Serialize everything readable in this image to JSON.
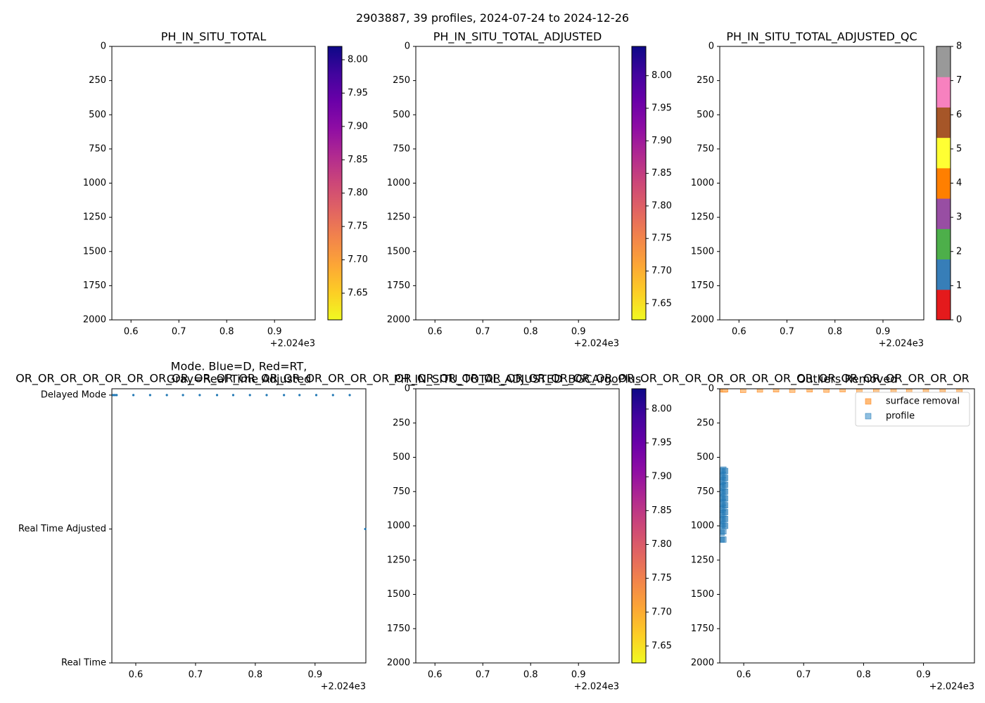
{
  "figure": {
    "suptitle": "2903887, 39 profiles, 2024-07-24 to 2024-12-26",
    "x_offset_label": "+2.024e3"
  },
  "chart_data": [
    {
      "id": "p1",
      "type": "heatmap",
      "title": "PH_IN_SITU_TOTAL",
      "x_ticks": [
        0.6,
        0.7,
        0.8,
        0.9
      ],
      "xlim": [
        0.56,
        0.985
      ],
      "ylim": [
        2000,
        0
      ],
      "y_ticks": [
        0,
        250,
        500,
        750,
        1000,
        1250,
        1500,
        1750,
        2000
      ],
      "values": [],
      "colorbar": {
        "type": "plasma_r",
        "range": [
          7.61,
          8.02
        ],
        "ticks": [
          "7.65",
          "7.70",
          "7.75",
          "7.80",
          "7.85",
          "7.90",
          "7.95",
          "8.00"
        ]
      }
    },
    {
      "id": "p2",
      "type": "heatmap",
      "title": "PH_IN_SITU_TOTAL_ADJUSTED",
      "x_ticks": [
        0.6,
        0.7,
        0.8,
        0.9
      ],
      "xlim": [
        0.56,
        0.985
      ],
      "ylim": [
        2000,
        0
      ],
      "y_ticks": [
        0,
        250,
        500,
        750,
        1000,
        1250,
        1500,
        1750,
        2000
      ],
      "values": [],
      "colorbar": {
        "type": "plasma_r",
        "range": [
          7.625,
          8.045
        ],
        "ticks": [
          "7.65",
          "7.70",
          "7.75",
          "7.80",
          "7.85",
          "7.90",
          "7.95",
          "8.00"
        ]
      }
    },
    {
      "id": "p3",
      "type": "heatmap",
      "title": "PH_IN_SITU_TOTAL_ADJUSTED_QC",
      "x_ticks": [
        0.6,
        0.7,
        0.8,
        0.9
      ],
      "xlim": [
        0.56,
        0.985
      ],
      "ylim": [
        2000,
        0
      ],
      "y_ticks": [
        0,
        250,
        500,
        750,
        1000,
        1250,
        1500,
        1750,
        2000
      ],
      "values": [],
      "colorbar": {
        "type": "categorical",
        "range": [
          0,
          8
        ],
        "ticks": [
          "0",
          "1",
          "2",
          "3",
          "4",
          "5",
          "6",
          "7",
          "8"
        ],
        "colors": [
          "#e41a1c",
          "#377eb8",
          "#4daf4a",
          "#984ea3",
          "#ff7f00",
          "#ffff33",
          "#a65628",
          "#f781bf",
          "#999999"
        ]
      }
    },
    {
      "id": "p4",
      "type": "scatter",
      "title_line1": "Mode. Blue=D, Red=RT,",
      "title_line2": "Gray=Real Time Adjusted",
      "title_overflow": "OR_OR_OR_OR_OR_OR_OR_OR_OR_OR_OR_OR_OR_OR_OR_OR_OR_OR_OR_OR_OR_OR_OR_OR_OR_OR_OR_OR_OR_OR_OR_OR_OR_OR_OR_OR_OR_OR_OR_OR_OR_OR_OR",
      "x_ticks": [
        0.6,
        0.7,
        0.8,
        0.9
      ],
      "xlim": [
        0.56,
        0.985
      ],
      "y_categories": [
        "Delayed Mode",
        "Real Time Adjusted",
        "Real Time"
      ],
      "marker_color": "#1f77b4",
      "points": [
        {
          "x": 0.562,
          "y": "Delayed Mode"
        },
        {
          "x": 0.565,
          "y": "Delayed Mode"
        },
        {
          "x": 0.568,
          "y": "Delayed Mode"
        },
        {
          "x": 0.596,
          "y": "Delayed Mode"
        },
        {
          "x": 0.624,
          "y": "Delayed Mode"
        },
        {
          "x": 0.652,
          "y": "Delayed Mode"
        },
        {
          "x": 0.679,
          "y": "Delayed Mode"
        },
        {
          "x": 0.707,
          "y": "Delayed Mode"
        },
        {
          "x": 0.736,
          "y": "Delayed Mode"
        },
        {
          "x": 0.763,
          "y": "Delayed Mode"
        },
        {
          "x": 0.791,
          "y": "Delayed Mode"
        },
        {
          "x": 0.819,
          "y": "Delayed Mode"
        },
        {
          "x": 0.848,
          "y": "Delayed Mode"
        },
        {
          "x": 0.874,
          "y": "Delayed Mode"
        },
        {
          "x": 0.902,
          "y": "Delayed Mode"
        },
        {
          "x": 0.93,
          "y": "Delayed Mode"
        },
        {
          "x": 0.958,
          "y": "Delayed Mode"
        },
        {
          "x": 0.984,
          "y": "Real Time Adjusted"
        }
      ]
    },
    {
      "id": "p5",
      "type": "heatmap",
      "title": "PH_IN_SITU_TOTAL_ADJUSTED_BGCArgoPlus",
      "x_ticks": [
        0.6,
        0.7,
        0.8,
        0.9
      ],
      "xlim": [
        0.56,
        0.985
      ],
      "ylim": [
        2000,
        0
      ],
      "y_ticks": [
        0,
        250,
        500,
        750,
        1000,
        1250,
        1500,
        1750,
        2000
      ],
      "values": [],
      "colorbar": {
        "type": "plasma_r",
        "range": [
          7.625,
          8.03
        ],
        "ticks": [
          "7.65",
          "7.70",
          "7.75",
          "7.80",
          "7.85",
          "7.90",
          "7.95",
          "8.00"
        ]
      }
    },
    {
      "id": "p6",
      "type": "scatter",
      "title": "Outliers Removed",
      "x_ticks": [
        0.6,
        0.7,
        0.8,
        0.9
      ],
      "xlim": [
        0.56,
        0.985
      ],
      "ylim": [
        2000,
        0
      ],
      "y_ticks": [
        0,
        250,
        500,
        750,
        1000,
        1250,
        1500,
        1750,
        2000
      ],
      "legend": [
        {
          "label": "surface removal",
          "color": "#ffbb78",
          "edge": "#ff7f0e"
        },
        {
          "label": "profile",
          "color": "#8fbfe0",
          "edge": "#1f77b4"
        }
      ],
      "legend_position": "upper-right",
      "surface_points": [
        {
          "x": 0.563,
          "y": 3
        },
        {
          "x": 0.567,
          "y": 5
        },
        {
          "x": 0.569,
          "y": 4
        },
        {
          "x": 0.599,
          "y": 8
        },
        {
          "x": 0.627,
          "y": 5
        },
        {
          "x": 0.654,
          "y": 4
        },
        {
          "x": 0.681,
          "y": 7
        },
        {
          "x": 0.71,
          "y": 4
        },
        {
          "x": 0.738,
          "y": 6
        },
        {
          "x": 0.765,
          "y": 3
        },
        {
          "x": 0.793,
          "y": 5
        },
        {
          "x": 0.821,
          "y": 4
        },
        {
          "x": 0.85,
          "y": 6
        },
        {
          "x": 0.876,
          "y": 4
        },
        {
          "x": 0.904,
          "y": 5
        },
        {
          "x": 0.932,
          "y": 3
        },
        {
          "x": 0.96,
          "y": 6
        }
      ],
      "profile_points": [
        {
          "x": 0.563,
          "y": 600
        },
        {
          "x": 0.563,
          "y": 640
        },
        {
          "x": 0.563,
          "y": 680
        },
        {
          "x": 0.563,
          "y": 720
        },
        {
          "x": 0.563,
          "y": 760
        },
        {
          "x": 0.563,
          "y": 800
        },
        {
          "x": 0.563,
          "y": 840
        },
        {
          "x": 0.563,
          "y": 880
        },
        {
          "x": 0.563,
          "y": 920
        },
        {
          "x": 0.563,
          "y": 960
        },
        {
          "x": 0.563,
          "y": 1000
        },
        {
          "x": 0.563,
          "y": 1050
        },
        {
          "x": 0.563,
          "y": 1100
        },
        {
          "x": 0.566,
          "y": 590
        },
        {
          "x": 0.566,
          "y": 630
        },
        {
          "x": 0.566,
          "y": 670
        },
        {
          "x": 0.566,
          "y": 710
        },
        {
          "x": 0.566,
          "y": 750
        },
        {
          "x": 0.566,
          "y": 790
        },
        {
          "x": 0.566,
          "y": 830
        },
        {
          "x": 0.566,
          "y": 870
        },
        {
          "x": 0.566,
          "y": 910
        },
        {
          "x": 0.566,
          "y": 950
        },
        {
          "x": 0.566,
          "y": 990
        },
        {
          "x": 0.566,
          "y": 1040
        },
        {
          "x": 0.566,
          "y": 1100
        },
        {
          "x": 0.569,
          "y": 600
        },
        {
          "x": 0.569,
          "y": 650
        },
        {
          "x": 0.569,
          "y": 700
        },
        {
          "x": 0.569,
          "y": 750
        },
        {
          "x": 0.569,
          "y": 800
        },
        {
          "x": 0.569,
          "y": 850
        },
        {
          "x": 0.569,
          "y": 900
        },
        {
          "x": 0.569,
          "y": 950
        },
        {
          "x": 0.569,
          "y": 1000
        }
      ]
    }
  ]
}
